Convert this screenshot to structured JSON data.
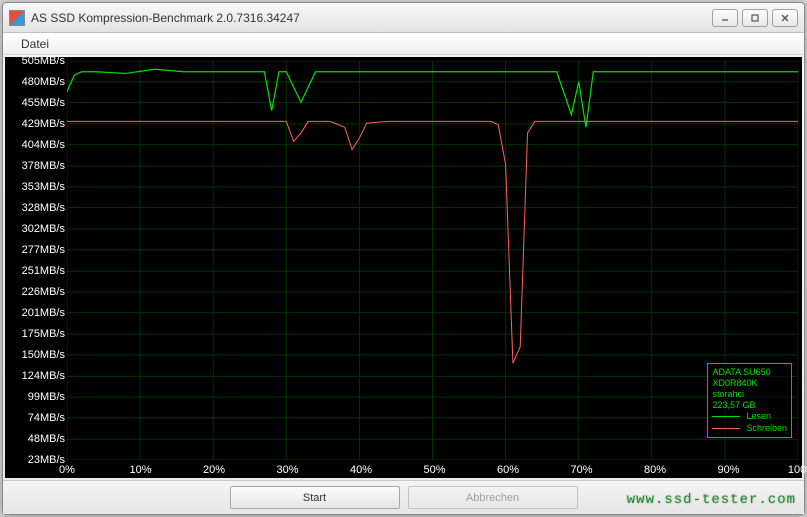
{
  "window": {
    "title": "AS SSD Kompression-Benchmark 2.0.7316.34247"
  },
  "menu": {
    "file": "Datei"
  },
  "chart": {
    "type": "line",
    "background_color": "#000000",
    "grid_color": "#003300",
    "axis_label_color": "#ffffff",
    "axis_fontsize": 11,
    "y_unit": "MB/s",
    "y_values": [
      505,
      480,
      455,
      429,
      404,
      378,
      353,
      328,
      302,
      277,
      251,
      226,
      201,
      175,
      150,
      124,
      99,
      74,
      48,
      23
    ],
    "x_values": [
      0,
      10,
      20,
      30,
      40,
      50,
      60,
      70,
      80,
      90,
      100
    ],
    "x_unit": "%",
    "series": [
      {
        "name": "Lesen",
        "color": "#00e000",
        "line_width": 1.2,
        "points": [
          [
            0,
            468
          ],
          [
            1,
            488
          ],
          [
            2,
            492
          ],
          [
            4,
            492
          ],
          [
            8,
            490
          ],
          [
            12,
            495
          ],
          [
            16,
            492
          ],
          [
            20,
            492
          ],
          [
            24,
            492
          ],
          [
            27,
            492
          ],
          [
            28,
            445
          ],
          [
            29,
            492
          ],
          [
            30,
            492
          ],
          [
            32,
            455
          ],
          [
            34,
            492
          ],
          [
            38,
            492
          ],
          [
            40,
            492
          ],
          [
            44,
            492
          ],
          [
            48,
            492
          ],
          [
            52,
            492
          ],
          [
            56,
            492
          ],
          [
            60,
            492
          ],
          [
            64,
            492
          ],
          [
            67,
            492
          ],
          [
            69,
            440
          ],
          [
            70,
            480
          ],
          [
            71,
            425
          ],
          [
            72,
            492
          ],
          [
            76,
            492
          ],
          [
            80,
            492
          ],
          [
            84,
            492
          ],
          [
            88,
            492
          ],
          [
            92,
            492
          ],
          [
            96,
            492
          ],
          [
            100,
            492
          ]
        ]
      },
      {
        "name": "Schreiben",
        "color": "#ff6060",
        "line_width": 1.0,
        "points": [
          [
            0,
            432
          ],
          [
            4,
            432
          ],
          [
            8,
            432
          ],
          [
            12,
            432
          ],
          [
            16,
            432
          ],
          [
            20,
            432
          ],
          [
            24,
            432
          ],
          [
            28,
            432
          ],
          [
            30,
            432
          ],
          [
            31,
            408
          ],
          [
            32,
            418
          ],
          [
            33,
            432
          ],
          [
            36,
            432
          ],
          [
            38,
            425
          ],
          [
            39,
            398
          ],
          [
            40,
            412
          ],
          [
            41,
            430
          ],
          [
            44,
            432
          ],
          [
            48,
            432
          ],
          [
            52,
            432
          ],
          [
            56,
            432
          ],
          [
            58,
            432
          ],
          [
            59,
            428
          ],
          [
            60,
            380
          ],
          [
            61,
            140
          ],
          [
            62,
            160
          ],
          [
            63,
            418
          ],
          [
            64,
            432
          ],
          [
            68,
            432
          ],
          [
            72,
            432
          ],
          [
            76,
            432
          ],
          [
            80,
            432
          ],
          [
            84,
            432
          ],
          [
            88,
            432
          ],
          [
            92,
            432
          ],
          [
            96,
            432
          ],
          [
            100,
            432
          ]
        ]
      }
    ]
  },
  "legend": {
    "border_color": "#00cc00",
    "text_color": "#00e000",
    "device": "ADATA SU650",
    "firmware": "XD0R840K",
    "driver": "storahci",
    "capacity": "223,57 GB",
    "series": [
      {
        "label": "Lesen",
        "color": "#00e000"
      },
      {
        "label": "Schreiben",
        "color": "#ff6060"
      }
    ]
  },
  "buttons": {
    "start": "Start",
    "abort": "Abbrechen"
  },
  "watermark": "www.ssd-tester.com"
}
